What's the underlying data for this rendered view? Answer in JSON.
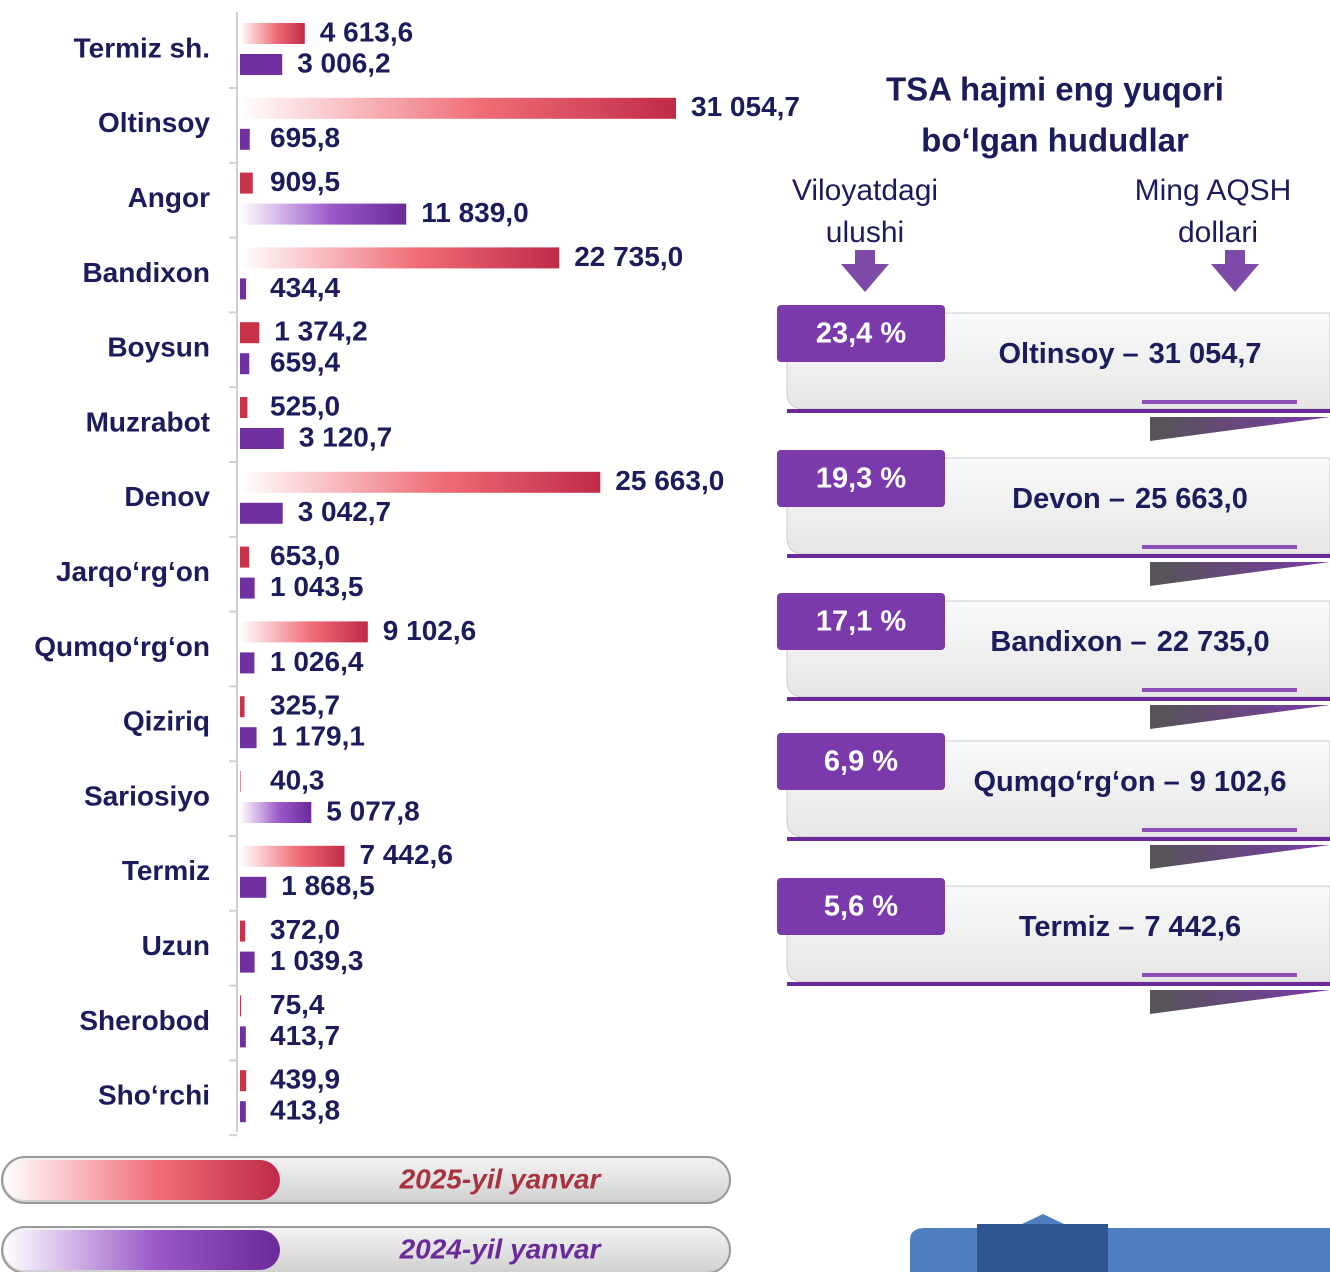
{
  "chart_data": {
    "type": "bar",
    "orientation": "horizontal",
    "categories": [
      "Termiz sh.",
      "Oltinsoy",
      "Angor",
      "Bandixon",
      "Boysun",
      "Muzrabot",
      "Denov",
      "Jarqo‘rg‘on",
      "Qumqo‘rg‘on",
      "Qiziriq",
      "Sariosiyo",
      "Termiz",
      "Uzun",
      "Sherobod",
      "Sho‘rchi"
    ],
    "series": [
      {
        "name": "2025-yil yanvar",
        "color": "#c8334a",
        "values": [
          4613.6,
          31054.7,
          909.5,
          22735.0,
          1374.2,
          525.0,
          25663.0,
          653.0,
          9102.6,
          325.7,
          40.3,
          7442.6,
          372.0,
          75.4,
          439.9
        ],
        "value_labels": [
          "4 613,6",
          "31 054,7",
          "909,5",
          "22 735,0",
          "1 374,2",
          "525,0",
          "25 663,0",
          "653,0",
          "9 102,6",
          "325,7",
          "40,3",
          "7 442,6",
          "372,0",
          "75,4",
          "439,9"
        ]
      },
      {
        "name": "2024-yil yanvar",
        "color": "#7030a0",
        "values": [
          3006.2,
          695.8,
          11839.0,
          434.4,
          659.4,
          3120.7,
          3042.7,
          1043.5,
          1026.4,
          1179.1,
          5077.8,
          1868.5,
          1039.3,
          413.7,
          413.8
        ],
        "value_labels": [
          "3 006,2",
          "695,8",
          "11 839,0",
          "434,4",
          "659,4",
          "3 120,7",
          "3 042,7",
          "1 043,5",
          "1 026,4",
          "1 179,1",
          "5 077,8",
          "1 868,5",
          "1 039,3",
          "413,7",
          "413,8"
        ]
      }
    ]
  },
  "panel": {
    "title": [
      "TSA hajmi eng yuqori",
      "bo‘lgan hududlar"
    ],
    "col1": [
      "Viloyatdagi",
      "ulushi"
    ],
    "col2": [
      "Ming AQSH",
      "dollari"
    ],
    "items": [
      {
        "share": "23,4 %",
        "name": "Oltinsoy –",
        "value": "31 054,7"
      },
      {
        "share": "19,3 %",
        "name": "Devon –",
        "value": "25 663,0"
      },
      {
        "share": "17,1 %",
        "name": "Bandixon –",
        "value": "22 735,0"
      },
      {
        "share": "6,9 %",
        "name": "Qumqo‘rg‘on –",
        "value": "9 102,6"
      },
      {
        "share": "5,6 %",
        "name": "Termiz –",
        "value": "7 442,6"
      }
    ]
  }
}
